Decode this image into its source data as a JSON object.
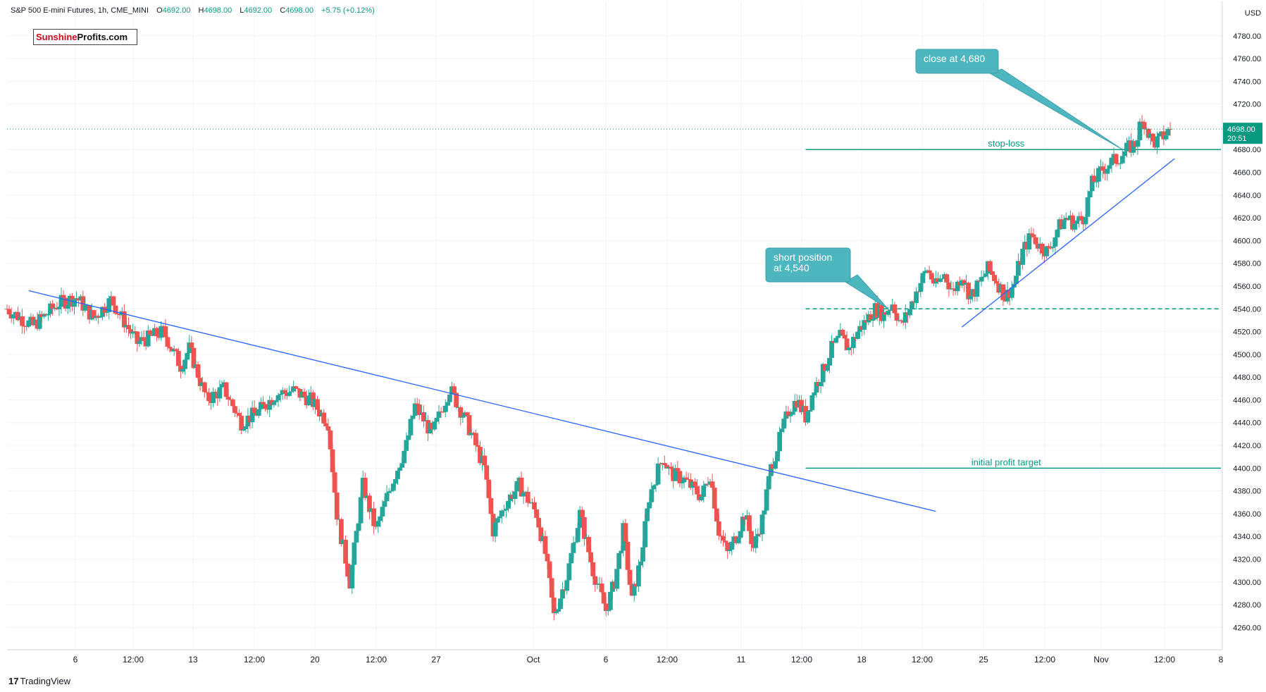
{
  "header": {
    "symbol": "S&P 500 E-mini Futures, 1h, CME_MINI",
    "open_label": "O",
    "open": "4692.00",
    "high_label": "H",
    "high": "4698.00",
    "low_label": "L",
    "low": "4692.00",
    "close_label": "C",
    "close": "4698.00",
    "change": "+5.75 (+0.12%)"
  },
  "logo": {
    "part1": "Sunshine",
    "part2": "Profits.com"
  },
  "footer": {
    "brand": "TradingView",
    "mark": "17"
  },
  "colors": {
    "up": "#26a69a",
    "down": "#ef5350",
    "trendline": "#2962ff",
    "level": "#089981",
    "callout": "#4db6bf",
    "current_price": "#089981",
    "grid": "#f0f3fa"
  },
  "chart_data": {
    "type": "candlestick",
    "title": "S&P 500 E-mini Futures, 1h, CME_MINI",
    "currency": "USD",
    "ylim": [
      4245,
      4810
    ],
    "y_ticks": [
      4260,
      4280,
      4300,
      4320,
      4340,
      4360,
      4380,
      4400,
      4420,
      4440,
      4460,
      4480,
      4500,
      4520,
      4540,
      4560,
      4580,
      4600,
      4620,
      4640,
      4660,
      4680,
      4700,
      4720,
      4740,
      4760,
      4780
    ],
    "x_ticks": [
      "6",
      "12:00",
      "13",
      "12:00",
      "20",
      "12:00",
      "27",
      "Oct",
      "6",
      "12:00",
      "11",
      "12:00",
      "18",
      "12:00",
      "25",
      "12:00",
      "Nov",
      "12:00",
      "8"
    ],
    "current_price": {
      "value": "4698.00",
      "countdown": "20:51"
    },
    "price_path": [
      [
        0,
        4540
      ],
      [
        3,
        4525
      ],
      [
        6,
        4545
      ],
      [
        8,
        4550
      ],
      [
        10,
        4532
      ],
      [
        12,
        4548
      ],
      [
        15,
        4510
      ],
      [
        18,
        4520
      ],
      [
        20,
        4490
      ],
      [
        21,
        4505
      ],
      [
        23,
        4460
      ],
      [
        25,
        4470
      ],
      [
        27,
        4440
      ],
      [
        29,
        4450
      ],
      [
        31,
        4465
      ],
      [
        33,
        4468
      ],
      [
        35,
        4460
      ],
      [
        37,
        4440
      ],
      [
        38,
        4360
      ],
      [
        39.5,
        4300
      ],
      [
        41,
        4385
      ],
      [
        42.5,
        4345
      ],
      [
        44,
        4380
      ],
      [
        46,
        4420
      ],
      [
        47,
        4455
      ],
      [
        49,
        4430
      ],
      [
        51,
        4470
      ],
      [
        53,
        4440
      ],
      [
        55,
        4400
      ],
      [
        56,
        4345
      ],
      [
        57.5,
        4370
      ],
      [
        59,
        4385
      ],
      [
        61,
        4360
      ],
      [
        62,
        4325
      ],
      [
        63,
        4270
      ],
      [
        64.5,
        4305
      ],
      [
        66,
        4360
      ],
      [
        67.5,
        4310
      ],
      [
        69,
        4275
      ],
      [
        70,
        4300
      ],
      [
        71,
        4345
      ],
      [
        72,
        4283
      ],
      [
        73,
        4320
      ],
      [
        74,
        4375
      ],
      [
        75.5,
        4410
      ],
      [
        76.5,
        4395
      ],
      [
        78,
        4390
      ],
      [
        80,
        4375
      ],
      [
        81,
        4395
      ],
      [
        82,
        4345
      ],
      [
        83,
        4325
      ],
      [
        84,
        4340
      ],
      [
        85,
        4360
      ],
      [
        86,
        4330
      ],
      [
        87,
        4355
      ],
      [
        88,
        4400
      ],
      [
        89,
        4425
      ],
      [
        90,
        4450
      ],
      [
        91,
        4460
      ],
      [
        92,
        4445
      ],
      [
        93,
        4470
      ],
      [
        94,
        4485
      ],
      [
        95,
        4505
      ],
      [
        96,
        4515
      ],
      [
        97,
        4505
      ],
      [
        98,
        4520
      ],
      [
        99,
        4530
      ],
      [
        100,
        4540
      ],
      [
        101,
        4535
      ],
      [
        102,
        4545
      ],
      [
        103,
        4525
      ],
      [
        104,
        4540
      ],
      [
        105,
        4560
      ],
      [
        106,
        4575
      ],
      [
        107,
        4560
      ],
      [
        108,
        4570
      ],
      [
        109,
        4555
      ],
      [
        110,
        4570
      ],
      [
        111,
        4550
      ],
      [
        112,
        4562
      ],
      [
        113,
        4575
      ],
      [
        114,
        4565
      ],
      [
        115,
        4550
      ],
      [
        116,
        4562
      ],
      [
        117,
        4590
      ],
      [
        118,
        4605
      ],
      [
        119,
        4595
      ],
      [
        120,
        4590
      ],
      [
        121,
        4610
      ],
      [
        122,
        4620
      ],
      [
        123,
        4615
      ],
      [
        124,
        4620
      ],
      [
        125,
        4650
      ],
      [
        126,
        4660
      ],
      [
        127,
        4668
      ],
      [
        128,
        4672
      ],
      [
        129,
        4680
      ],
      [
        130,
        4685
      ],
      [
        130.5,
        4700
      ],
      [
        131,
        4705
      ],
      [
        132,
        4685
      ],
      [
        133,
        4690
      ],
      [
        134,
        4698
      ]
    ],
    "lines": [
      {
        "name": "descending-trendline",
        "from": [
          2.5,
          4556
        ],
        "to": [
          107,
          4362
        ],
        "style": "solid",
        "color": "trendline"
      },
      {
        "name": "rising-trendline",
        "from": [
          110,
          4524
        ],
        "to": [
          134.5,
          4672
        ],
        "style": "solid",
        "color": "trendline"
      }
    ],
    "levels": [
      {
        "name": "stop-loss",
        "label": "stop-loss",
        "value": 4680,
        "x_from": 92,
        "style": "solid"
      },
      {
        "name": "short-position-level",
        "label": "",
        "value": 4540,
        "x_from": 92,
        "style": "dashed"
      },
      {
        "name": "initial-profit-target",
        "label": "initial profit target",
        "value": 4400,
        "x_from": 92,
        "style": "solid"
      }
    ],
    "callouts": [
      {
        "name": "close-callout",
        "text": [
          "close at 4,680"
        ],
        "target": [
          128.5,
          4680
        ]
      },
      {
        "name": "short-position-callout",
        "text": [
          "short position",
          "at 4,540"
        ],
        "target": [
          101.5,
          4540
        ]
      }
    ]
  }
}
